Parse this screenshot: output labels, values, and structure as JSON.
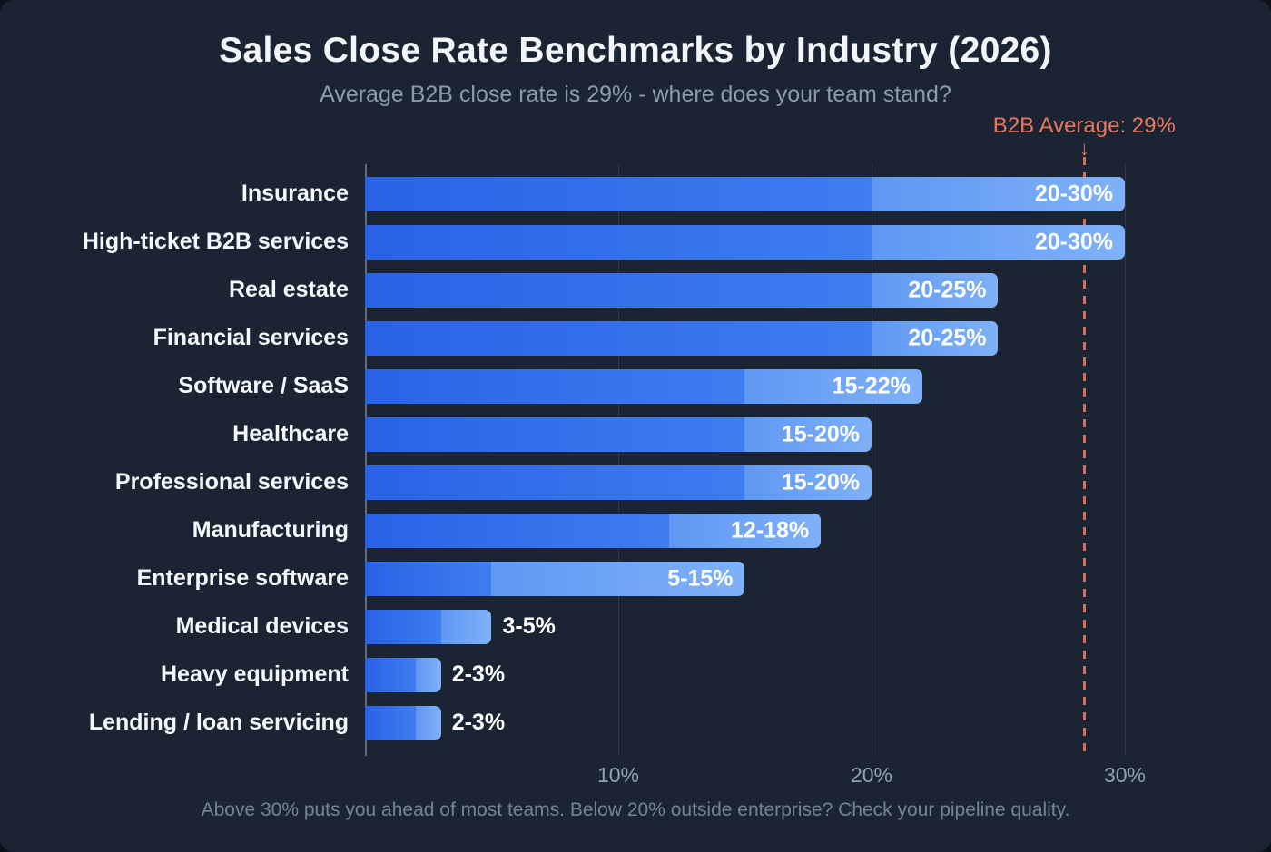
{
  "chart_data": {
    "type": "bar",
    "orientation": "horizontal",
    "title": "Sales Close Rate Benchmarks by Industry (2026)",
    "subtitle": "Average B2B close rate is 29% - where does your team stand?",
    "caption": "Above 30% puts you ahead of most teams. Below 20% outside enterprise? Check your pipeline quality.",
    "categories": [
      "Insurance",
      "High-ticket B2B services",
      "Real estate",
      "Financial services",
      "Software / SaaS",
      "Healthcare",
      "Professional services",
      "Manufacturing",
      "Enterprise software",
      "Medical devices",
      "Heavy equipment",
      "Lending / loan servicing"
    ],
    "series": [
      {
        "name": "close_rate_low_pct",
        "values": [
          20,
          20,
          20,
          20,
          15,
          15,
          15,
          12,
          5,
          3,
          2,
          2
        ]
      },
      {
        "name": "close_rate_high_pct",
        "values": [
          30,
          30,
          25,
          25,
          22,
          20,
          20,
          18,
          15,
          5,
          3,
          3
        ]
      }
    ],
    "bar_labels": [
      "20-30%",
      "20-30%",
      "20-25%",
      "20-25%",
      "15-22%",
      "15-20%",
      "15-20%",
      "12-18%",
      "5-15%",
      "3-5%",
      "2-3%",
      "2-3%"
    ],
    "xlabel": "",
    "ylabel": "",
    "xlim": [
      0,
      33.8
    ],
    "xticks": [
      {
        "value": 10,
        "label": "10%"
      },
      {
        "value": 20,
        "label": "20%"
      },
      {
        "value": 30,
        "label": "30%"
      }
    ],
    "grid": "vertical",
    "legend": "none",
    "annotation": {
      "label": "B2B Average: 29%",
      "value": 29,
      "line_position": 28.4,
      "arrow_glyph": "↓",
      "color": "#e8765c"
    },
    "colors": {
      "background": "#1a2433",
      "bar_low_start": "#2a62e6",
      "bar_low_end": "#3f7df0",
      "bar_high_start": "#5f98f3",
      "bar_high_end": "#7fb1f8",
      "accent": "#e8765c",
      "title_text": "#f2f5f9",
      "muted_text": "#8d99ad"
    }
  }
}
